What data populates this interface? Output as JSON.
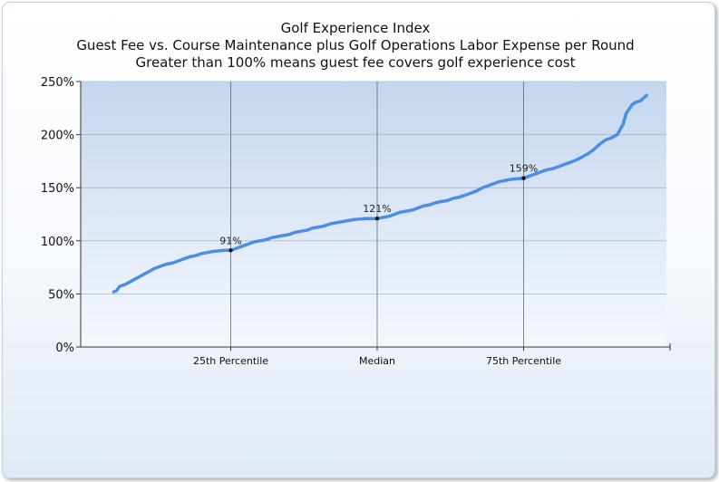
{
  "chart_data": {
    "type": "line",
    "title": "Golf Experience Index",
    "subtitle": [
      "Guest Fee vs. Course Maintenance plus Golf Operations Labor Expense per Round",
      "Greater than 100% means guest fee covers golf experience cost"
    ],
    "xlabel": "",
    "ylabel": "",
    "ylim": [
      0,
      250
    ],
    "yticks": [
      "0%",
      "50%",
      "100%",
      "150%",
      "200%",
      "250%"
    ],
    "xlim": [
      0,
      100
    ],
    "categories": [
      {
        "label": "25th Percentile",
        "x": 25
      },
      {
        "label": "Median",
        "x": 50
      },
      {
        "label": "75th Percentile",
        "x": 75
      }
    ],
    "grid": true,
    "series": [
      {
        "color": "#4a8fe3",
        "x": [
          5,
          5.5,
          6,
          7,
          8,
          9,
          10,
          11,
          12,
          13,
          14,
          15,
          16,
          17,
          18,
          19,
          20,
          21,
          22,
          23,
          24,
          25,
          26,
          27,
          28,
          29,
          30,
          31,
          32,
          33,
          34,
          35,
          36,
          37,
          38,
          39,
          40,
          41,
          42,
          43,
          44,
          45,
          46,
          47,
          48,
          49,
          50,
          51,
          52,
          53,
          54,
          55,
          56,
          57,
          58,
          59,
          60,
          61,
          62,
          63,
          64,
          65,
          66,
          67,
          68,
          69,
          70,
          71,
          72,
          73,
          74,
          75,
          76,
          77,
          78,
          79,
          80,
          81,
          82,
          83,
          84,
          85,
          86,
          87,
          88,
          89,
          90,
          91,
          91.5,
          92,
          92.5,
          93,
          93.5,
          94,
          95,
          96
        ],
        "values": [
          52,
          53,
          57,
          59,
          62,
          65,
          68,
          71,
          74,
          76,
          78,
          79,
          81,
          83,
          85,
          86,
          88,
          89,
          90,
          90.5,
          91,
          91,
          93,
          95,
          97,
          99,
          100,
          101,
          103,
          104,
          105,
          106,
          108,
          109,
          110,
          112,
          113,
          114,
          116,
          117,
          118,
          119,
          120,
          120.5,
          121,
          121,
          121,
          122,
          123,
          125,
          127,
          128,
          129,
          131,
          133,
          134,
          136,
          137,
          138,
          140,
          141,
          143,
          145,
          147,
          150,
          152,
          154,
          156,
          157,
          158,
          158.5,
          159,
          161,
          163,
          165,
          167,
          168,
          170,
          172,
          174,
          176,
          179,
          182,
          186,
          191,
          195,
          197,
          200,
          205,
          210,
          220,
          224,
          228,
          230,
          232,
          237
        ]
      }
    ],
    "annotations": [
      {
        "label": "91%",
        "x": 25,
        "y": 91
      },
      {
        "label": "121%",
        "x": 50,
        "y": 121
      },
      {
        "label": "159%",
        "x": 75,
        "y": 159
      }
    ]
  }
}
